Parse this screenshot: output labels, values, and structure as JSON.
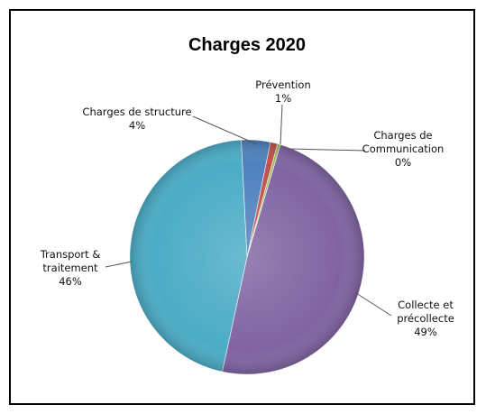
{
  "chart_data": {
    "type": "pie",
    "title": "Charges 2020",
    "slices": [
      {
        "name": "Prévention",
        "label_lines": [
          "Prévention",
          "1%"
        ],
        "value": 1,
        "color": "#C0504D"
      },
      {
        "name": "Charges de Communication",
        "label_lines": [
          "Charges de",
          "Communication",
          "0%"
        ],
        "value": 0.4,
        "color": "#9BBB59"
      },
      {
        "name": "Collecte et précollecte",
        "label_lines": [
          "Collecte et",
          "précollecte",
          "49%"
        ],
        "value": 49,
        "color": "#8064A2"
      },
      {
        "name": "Transport & traitement",
        "label_lines": [
          "Transport &",
          "traitement",
          "46%"
        ],
        "value": 46,
        "color": "#4BACC6"
      },
      {
        "name": "Charges de structure",
        "label_lines": [
          "Charges de structure",
          "4%"
        ],
        "value": 4,
        "color": "#4F81BD"
      }
    ],
    "legend": "none",
    "data_labels": "outside with leader lines"
  }
}
